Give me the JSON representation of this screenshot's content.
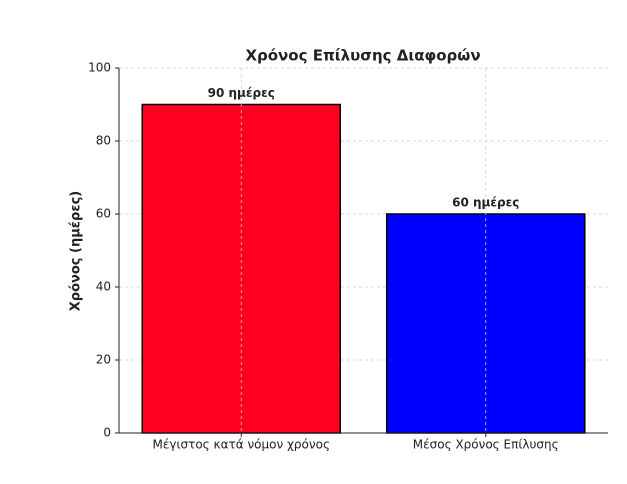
{
  "chart_data": {
    "type": "bar",
    "title": "Χρόνος Επίλυσης Διαφορών",
    "ylabel": "Χρόνος (ημέρες)",
    "categories": [
      "Μέγιστος κατά νόμον χρόνος",
      "Μέσος Χρόνος Επίλυσης"
    ],
    "values": [
      90,
      60
    ],
    "value_labels": [
      "90 ημέρες",
      "60 ημέρες"
    ],
    "colors": [
      "#ff0020",
      "#0000ff"
    ],
    "ylim": [
      0,
      100
    ],
    "yticks": [
      0,
      20,
      40,
      60,
      80,
      100
    ],
    "grid": true
  }
}
